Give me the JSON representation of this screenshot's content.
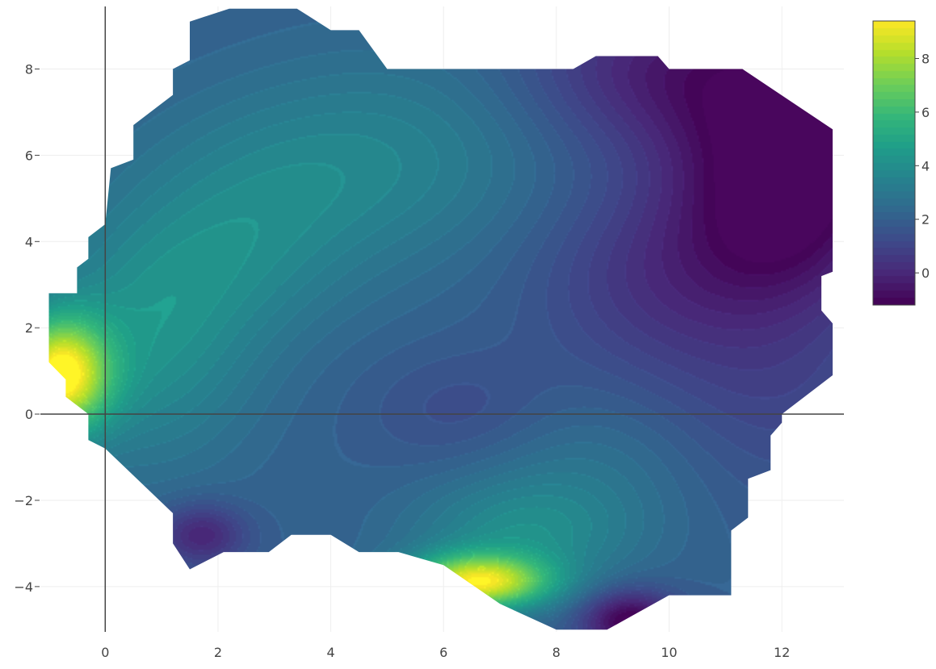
{
  "chart_data": {
    "type": "contour",
    "colorscale": "viridis",
    "colorscale_stops": [
      "#440154",
      "#482878",
      "#3e4989",
      "#31688e",
      "#26828e",
      "#1f9e89",
      "#35b779",
      "#6ece58",
      "#b5de2b",
      "#fde725"
    ],
    "zlim": [
      -1.2,
      9.4
    ],
    "colorbar_ticks": [
      0,
      2,
      4,
      6,
      8
    ],
    "xlim": [
      -1.15,
      13.1
    ],
    "ylim": [
      -5.05,
      9.45
    ],
    "x_ticks": [
      0,
      2,
      4,
      6,
      8,
      10,
      12
    ],
    "y_ticks": [
      -4,
      -2,
      0,
      2,
      4,
      6,
      8
    ],
    "x_tick_labels": [
      "0",
      "2",
      "4",
      "6",
      "8",
      "10",
      "12"
    ],
    "y_tick_labels": [
      "−4",
      "−2",
      "0",
      "2",
      "4",
      "6",
      "8"
    ],
    "zero_lines": true,
    "grid": true,
    "colorbar_position": "right",
    "data_region": [
      [
        -1.0,
        1.2
      ],
      [
        -1.0,
        2.8
      ],
      [
        -0.5,
        2.8
      ],
      [
        -0.5,
        3.4
      ],
      [
        -0.3,
        3.6
      ],
      [
        -0.3,
        4.1
      ],
      [
        0.0,
        4.4
      ],
      [
        0.1,
        5.7
      ],
      [
        0.5,
        5.9
      ],
      [
        0.5,
        6.7
      ],
      [
        1.2,
        7.4
      ],
      [
        1.2,
        8.0
      ],
      [
        1.5,
        8.2
      ],
      [
        1.5,
        9.1
      ],
      [
        2.2,
        9.4
      ],
      [
        3.4,
        9.4
      ],
      [
        4.0,
        8.9
      ],
      [
        4.5,
        8.9
      ],
      [
        5.0,
        8.0
      ],
      [
        8.3,
        8.0
      ],
      [
        8.7,
        8.3
      ],
      [
        9.8,
        8.3
      ],
      [
        10.0,
        8.0
      ],
      [
        11.3,
        8.0
      ],
      [
        12.9,
        6.6
      ],
      [
        12.9,
        3.3
      ],
      [
        12.7,
        3.2
      ],
      [
        12.7,
        2.4
      ],
      [
        12.9,
        2.1
      ],
      [
        12.9,
        0.9
      ],
      [
        12.0,
        0.0
      ],
      [
        12.0,
        -0.2
      ],
      [
        11.8,
        -0.5
      ],
      [
        11.8,
        -1.3
      ],
      [
        11.4,
        -1.5
      ],
      [
        11.4,
        -2.4
      ],
      [
        11.1,
        -2.7
      ],
      [
        11.1,
        -4.2
      ],
      [
        10.0,
        -4.2
      ],
      [
        8.9,
        -5.0
      ],
      [
        8.0,
        -5.0
      ],
      [
        7.0,
        -4.4
      ],
      [
        6.0,
        -3.5
      ],
      [
        5.2,
        -3.2
      ],
      [
        4.5,
        -3.2
      ],
      [
        4.0,
        -2.8
      ],
      [
        3.3,
        -2.8
      ],
      [
        2.9,
        -3.2
      ],
      [
        2.1,
        -3.2
      ],
      [
        1.5,
        -3.6
      ],
      [
        1.2,
        -3.0
      ],
      [
        1.2,
        -2.3
      ],
      [
        0.0,
        -0.8
      ],
      [
        -0.3,
        -0.6
      ],
      [
        -0.3,
        0.0
      ],
      [
        -0.7,
        0.4
      ],
      [
        -0.7,
        0.8
      ]
    ],
    "field_base": 2.0,
    "field_features": [
      {
        "type": "peak",
        "x": -0.8,
        "y": 0.9,
        "amplitude": 7.2,
        "sx": 0.6,
        "sy": 0.9
      },
      {
        "type": "peak",
        "x": 0.7,
        "y": 1.6,
        "amplitude": 2.0,
        "sx": 1.4,
        "sy": 2.0
      },
      {
        "type": "peak",
        "x": 6.6,
        "y": -3.9,
        "amplitude": 6.8,
        "sx": 0.9,
        "sy": 0.45
      },
      {
        "type": "peak",
        "x": 7.4,
        "y": -2.8,
        "amplitude": 1.8,
        "sx": 1.4,
        "sy": 0.9
      },
      {
        "type": "peak",
        "x": 5.3,
        "y": 6.0,
        "amplitude": 1.2,
        "sx": 2.0,
        "sy": 1.8
      },
      {
        "type": "peak",
        "x": 2.8,
        "y": 5.5,
        "amplitude": 0.9,
        "sx": 1.8,
        "sy": 1.5
      },
      {
        "type": "peak",
        "x": 2.4,
        "y": 3.5,
        "amplitude": 1.0,
        "sx": 1.5,
        "sy": 1.4
      },
      {
        "type": "peak",
        "x": 8.4,
        "y": -1.2,
        "amplitude": 0.8,
        "sx": 1.6,
        "sy": 1.2
      },
      {
        "type": "trough",
        "x": 12.3,
        "y": 6.9,
        "amplitude": -3.0,
        "sx": 1.6,
        "sy": 1.9
      },
      {
        "type": "trough",
        "x": 12.0,
        "y": 4.4,
        "amplitude": -2.2,
        "sx": 1.3,
        "sy": 1.6
      },
      {
        "type": "trough",
        "x": 9.6,
        "y": 8.0,
        "amplitude": -1.8,
        "sx": 1.6,
        "sy": 1.3
      },
      {
        "type": "trough",
        "x": 9.7,
        "y": 3.2,
        "amplitude": -1.4,
        "sx": 1.5,
        "sy": 1.6
      },
      {
        "type": "trough",
        "x": 9.3,
        "y": -4.8,
        "amplitude": -3.4,
        "sx": 0.6,
        "sy": 0.5
      },
      {
        "type": "trough",
        "x": 1.7,
        "y": -2.8,
        "amplitude": -2.2,
        "sx": 0.55,
        "sy": 0.5
      },
      {
        "type": "trough",
        "x": 6.4,
        "y": 0.0,
        "amplitude": -0.8,
        "sx": 1.2,
        "sy": 1.0
      },
      {
        "type": "trough",
        "x": 11.8,
        "y": 0.5,
        "amplitude": -0.9,
        "sx": 1.6,
        "sy": 1.8
      }
    ]
  }
}
